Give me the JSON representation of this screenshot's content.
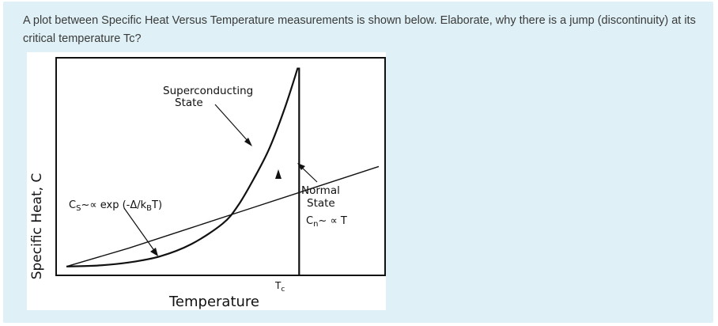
{
  "question": {
    "text": "A plot between Specific Heat Versus Temperature measurements is shown below. Elaborate, why there is a jump (discontinuity) at its critical temperature Tc?"
  },
  "chart_data": {
    "type": "line",
    "title": "",
    "xlabel": "Temperature",
    "ylabel": "Specific Heat, C",
    "grid": false,
    "legend": "none",
    "series": [
      {
        "name": "",
        "x": [
          0.0,
          0.1,
          0.2,
          0.3,
          0.4,
          0.5,
          0.55,
          0.6,
          0.65,
          0.7,
          0.74,
          0.745,
          0.745
        ],
        "y": [
          0.02,
          0.025,
          0.04,
          0.07,
          0.13,
          0.23,
          0.32,
          0.45,
          0.6,
          0.8,
          0.99,
          0.99,
          0.1
        ]
      },
      {
        "name": "",
        "x": [
          0.0,
          0.2,
          0.4,
          0.6,
          0.8,
          1.0
        ],
        "y": [
          0.02,
          0.11,
          0.21,
          0.31,
          0.41,
          0.51
        ]
      }
    ],
    "annotations": {
      "superconducting_line1": "Superconducting",
      "superconducting_line2": "State",
      "cs_formula_main": "C",
      "cs_formula_sub": "S",
      "cs_formula_rest1": "~∝ exp (-Δ/k",
      "cs_formula_sub2": "B",
      "cs_formula_rest2": "T)",
      "normal_line1": "Normal",
      "normal_line2": "State",
      "cn_main": "C",
      "cn_sub": "n",
      "cn_rest": "~ ∝ T",
      "tc_main": "T",
      "tc_sub": "c"
    },
    "xlim": [
      0,
      1
    ],
    "ylim": [
      0,
      1
    ]
  }
}
